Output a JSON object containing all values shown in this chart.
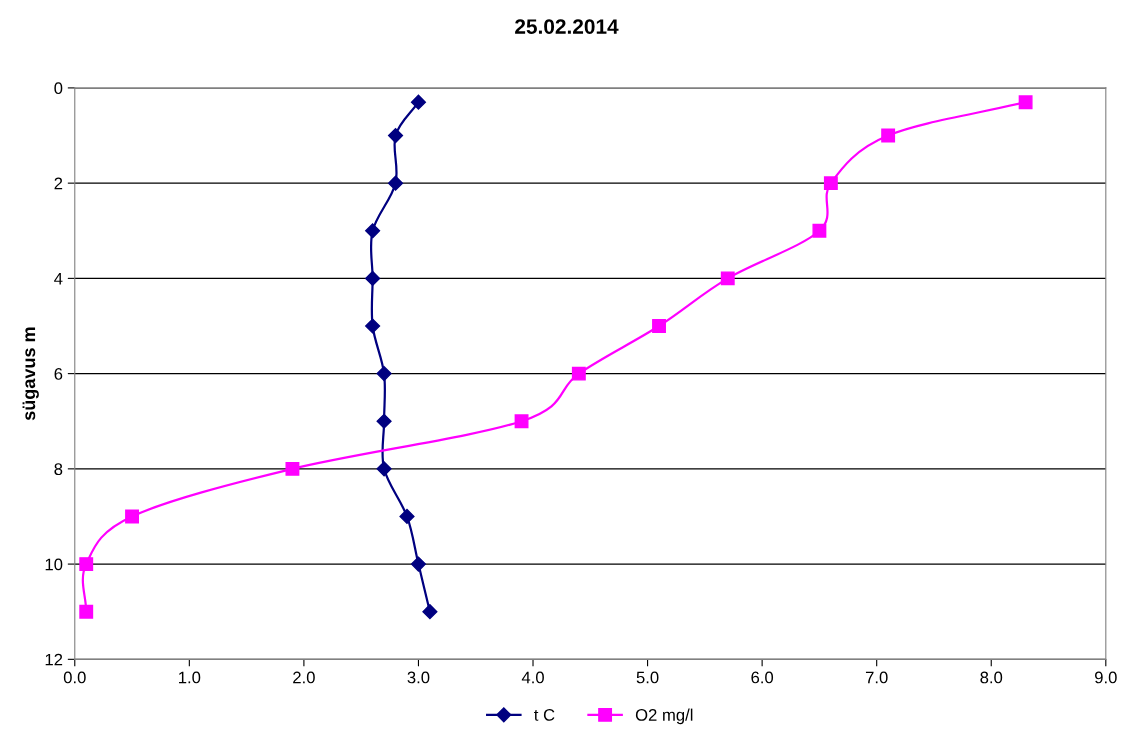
{
  "chart_data": {
    "type": "line",
    "title": "25.02.2014",
    "ylabel": "sügavus m",
    "series": [
      {
        "name": "t C",
        "color": "#000080",
        "marker": "diamond",
        "x": [
          3.0,
          2.8,
          2.8,
          2.6,
          2.6,
          2.6,
          2.7,
          2.7,
          2.7,
          2.9,
          3.0,
          3.1
        ],
        "values": [
          0.3,
          1,
          2,
          3,
          4,
          5,
          6,
          7,
          8,
          9,
          10,
          11
        ]
      },
      {
        "name": "O2 mg/l",
        "color": "#ff00ff",
        "marker": "square",
        "x": [
          8.3,
          7.1,
          6.6,
          6.5,
          5.7,
          5.1,
          4.4,
          3.9,
          1.9,
          0.5,
          0.1,
          0.1
        ],
        "values": [
          0.3,
          1,
          2,
          3,
          4,
          5,
          6,
          7,
          8,
          9,
          10,
          11
        ]
      }
    ],
    "xlim": [
      0,
      9
    ],
    "xticks": [
      {
        "value": 0,
        "label": "0.0"
      },
      {
        "value": 1,
        "label": "1.0"
      },
      {
        "value": 2,
        "label": "2.0"
      },
      {
        "value": 3,
        "label": "3.0"
      },
      {
        "value": 4,
        "label": "4.0"
      },
      {
        "value": 5,
        "label": "5.0"
      },
      {
        "value": 6,
        "label": "6.0"
      },
      {
        "value": 7,
        "label": "7.0"
      },
      {
        "value": 8,
        "label": "8.0"
      },
      {
        "value": 9,
        "label": "9.0"
      }
    ],
    "ylim": [
      12,
      0
    ],
    "yticks": [
      0,
      2,
      4,
      6,
      8,
      10,
      12
    ],
    "grid": "y",
    "legend": "bottom",
    "line_style": "solid"
  }
}
